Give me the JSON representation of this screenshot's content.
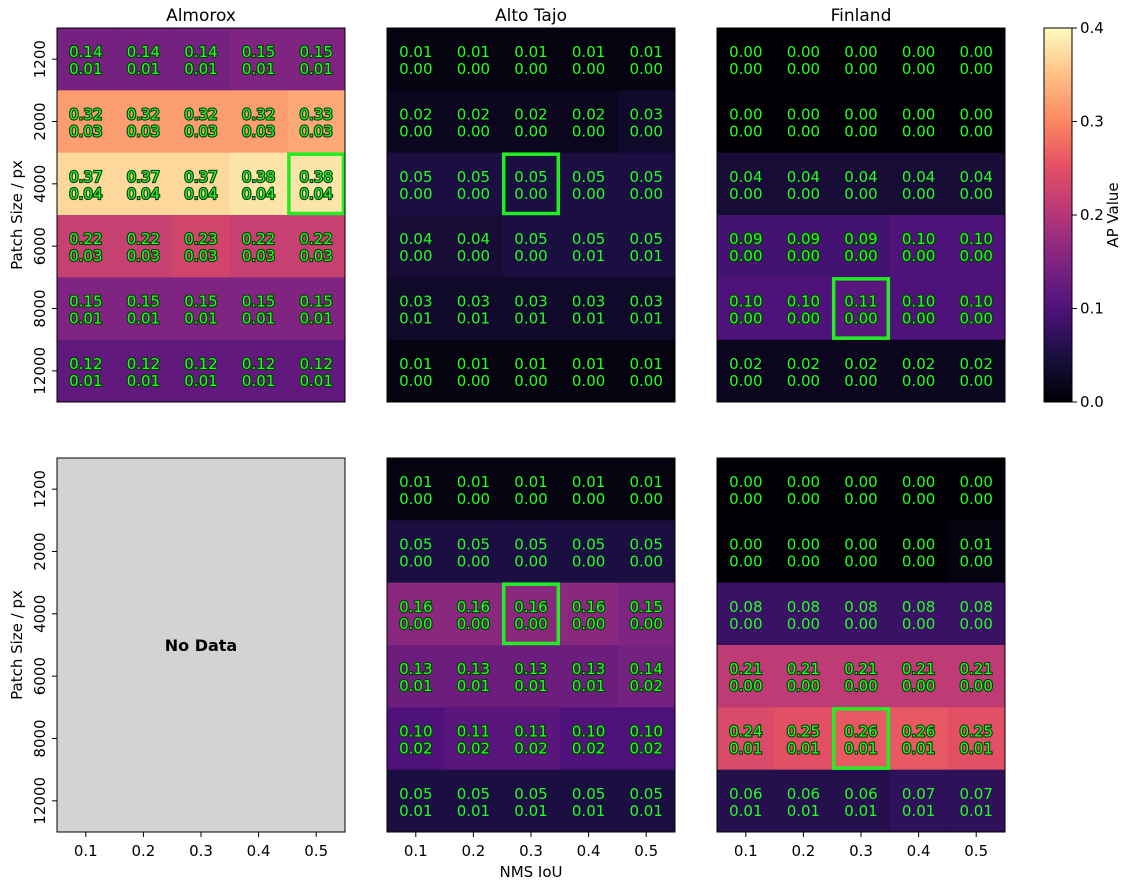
{
  "chart_data": {
    "type": "heatmap",
    "row_label": "Patch Size / px",
    "col_label": "NMS IoU",
    "rows": [
      "1200",
      "2000",
      "4000",
      "6000",
      "8000",
      "12000"
    ],
    "cols": [
      "0.1",
      "0.2",
      "0.3",
      "0.4",
      "0.5"
    ],
    "colorbar": {
      "label": "AP Value",
      "colormap": "magma",
      "range": [
        0.0,
        0.4
      ],
      "ticks": [
        "0.0",
        "0.1",
        "0.2",
        "0.3",
        "0.4"
      ]
    },
    "text_color": "#22ff22",
    "highlight_color": "#22ee22",
    "no_data_color": "#d3d3d3",
    "panels": [
      {
        "title": "Almorox",
        "row": 0,
        "col": 0,
        "no_data": false,
        "mean": [
          [
            "0.14",
            "0.14",
            "0.14",
            "0.15",
            "0.15"
          ],
          [
            "0.32",
            "0.32",
            "0.32",
            "0.32",
            "0.33"
          ],
          [
            "0.37",
            "0.37",
            "0.37",
            "0.38",
            "0.38"
          ],
          [
            "0.22",
            "0.22",
            "0.23",
            "0.22",
            "0.22"
          ],
          [
            "0.15",
            "0.15",
            "0.15",
            "0.15",
            "0.15"
          ],
          [
            "0.12",
            "0.12",
            "0.12",
            "0.12",
            "0.12"
          ]
        ],
        "std": [
          [
            "0.01",
            "0.01",
            "0.01",
            "0.01",
            "0.01"
          ],
          [
            "0.03",
            "0.03",
            "0.03",
            "0.03",
            "0.03"
          ],
          [
            "0.04",
            "0.04",
            "0.04",
            "0.04",
            "0.04"
          ],
          [
            "0.03",
            "0.03",
            "0.03",
            "0.03",
            "0.03"
          ],
          [
            "0.01",
            "0.01",
            "0.01",
            "0.01",
            "0.01"
          ],
          [
            "0.01",
            "0.01",
            "0.01",
            "0.01",
            "0.01"
          ]
        ],
        "highlight": [
          2,
          4
        ]
      },
      {
        "title": "Alto Tajo",
        "row": 0,
        "col": 1,
        "no_data": false,
        "mean": [
          [
            "0.01",
            "0.01",
            "0.01",
            "0.01",
            "0.01"
          ],
          [
            "0.02",
            "0.02",
            "0.02",
            "0.02",
            "0.03"
          ],
          [
            "0.05",
            "0.05",
            "0.05",
            "0.05",
            "0.05"
          ],
          [
            "0.04",
            "0.04",
            "0.05",
            "0.05",
            "0.05"
          ],
          [
            "0.03",
            "0.03",
            "0.03",
            "0.03",
            "0.03"
          ],
          [
            "0.01",
            "0.01",
            "0.01",
            "0.01",
            "0.01"
          ]
        ],
        "std": [
          [
            "0.00",
            "0.00",
            "0.00",
            "0.00",
            "0.00"
          ],
          [
            "0.00",
            "0.00",
            "0.00",
            "0.00",
            "0.00"
          ],
          [
            "0.00",
            "0.00",
            "0.00",
            "0.00",
            "0.00"
          ],
          [
            "0.00",
            "0.00",
            "0.00",
            "0.01",
            "0.01"
          ],
          [
            "0.01",
            "0.01",
            "0.01",
            "0.01",
            "0.01"
          ],
          [
            "0.00",
            "0.00",
            "0.00",
            "0.00",
            "0.00"
          ]
        ],
        "highlight": [
          2,
          2
        ]
      },
      {
        "title": "Finland",
        "row": 0,
        "col": 2,
        "no_data": false,
        "mean": [
          [
            "0.00",
            "0.00",
            "0.00",
            "0.00",
            "0.00"
          ],
          [
            "0.00",
            "0.00",
            "0.00",
            "0.00",
            "0.00"
          ],
          [
            "0.04",
            "0.04",
            "0.04",
            "0.04",
            "0.04"
          ],
          [
            "0.09",
            "0.09",
            "0.09",
            "0.10",
            "0.10"
          ],
          [
            "0.10",
            "0.10",
            "0.11",
            "0.10",
            "0.10"
          ],
          [
            "0.02",
            "0.02",
            "0.02",
            "0.02",
            "0.02"
          ]
        ],
        "std": [
          [
            "0.00",
            "0.00",
            "0.00",
            "0.00",
            "0.00"
          ],
          [
            "0.00",
            "0.00",
            "0.00",
            "0.00",
            "0.00"
          ],
          [
            "0.00",
            "0.00",
            "0.00",
            "0.00",
            "0.00"
          ],
          [
            "0.00",
            "0.00",
            "0.00",
            "0.00",
            "0.00"
          ],
          [
            "0.00",
            "0.00",
            "0.00",
            "0.00",
            "0.00"
          ],
          [
            "0.00",
            "0.00",
            "0.00",
            "0.00",
            "0.00"
          ]
        ],
        "highlight": [
          4,
          2
        ]
      },
      {
        "title": "",
        "row": 1,
        "col": 0,
        "no_data": true,
        "no_data_label": "No Data"
      },
      {
        "title": "",
        "row": 1,
        "col": 1,
        "no_data": false,
        "mean": [
          [
            "0.01",
            "0.01",
            "0.01",
            "0.01",
            "0.01"
          ],
          [
            "0.05",
            "0.05",
            "0.05",
            "0.05",
            "0.05"
          ],
          [
            "0.16",
            "0.16",
            "0.16",
            "0.16",
            "0.15"
          ],
          [
            "0.13",
            "0.13",
            "0.13",
            "0.13",
            "0.14"
          ],
          [
            "0.10",
            "0.11",
            "0.11",
            "0.10",
            "0.10"
          ],
          [
            "0.05",
            "0.05",
            "0.05",
            "0.05",
            "0.05"
          ]
        ],
        "std": [
          [
            "0.00",
            "0.00",
            "0.00",
            "0.00",
            "0.00"
          ],
          [
            "0.00",
            "0.00",
            "0.00",
            "0.00",
            "0.00"
          ],
          [
            "0.00",
            "0.00",
            "0.00",
            "0.00",
            "0.00"
          ],
          [
            "0.01",
            "0.01",
            "0.01",
            "0.01",
            "0.02"
          ],
          [
            "0.02",
            "0.02",
            "0.02",
            "0.02",
            "0.02"
          ],
          [
            "0.01",
            "0.01",
            "0.01",
            "0.01",
            "0.01"
          ]
        ],
        "highlight": [
          2,
          2
        ]
      },
      {
        "title": "",
        "row": 1,
        "col": 2,
        "no_data": false,
        "mean": [
          [
            "0.00",
            "0.00",
            "0.00",
            "0.00",
            "0.00"
          ],
          [
            "0.00",
            "0.00",
            "0.00",
            "0.00",
            "0.01"
          ],
          [
            "0.08",
            "0.08",
            "0.08",
            "0.08",
            "0.08"
          ],
          [
            "0.21",
            "0.21",
            "0.21",
            "0.21",
            "0.21"
          ],
          [
            "0.24",
            "0.25",
            "0.26",
            "0.26",
            "0.25"
          ],
          [
            "0.06",
            "0.06",
            "0.06",
            "0.07",
            "0.07"
          ]
        ],
        "std": [
          [
            "0.00",
            "0.00",
            "0.00",
            "0.00",
            "0.00"
          ],
          [
            "0.00",
            "0.00",
            "0.00",
            "0.00",
            "0.00"
          ],
          [
            "0.00",
            "0.00",
            "0.00",
            "0.00",
            "0.00"
          ],
          [
            "0.00",
            "0.00",
            "0.00",
            "0.00",
            "0.00"
          ],
          [
            "0.01",
            "0.01",
            "0.01",
            "0.01",
            "0.01"
          ],
          [
            "0.01",
            "0.01",
            "0.01",
            "0.01",
            "0.01"
          ]
        ],
        "highlight": [
          4,
          2
        ]
      }
    ]
  }
}
